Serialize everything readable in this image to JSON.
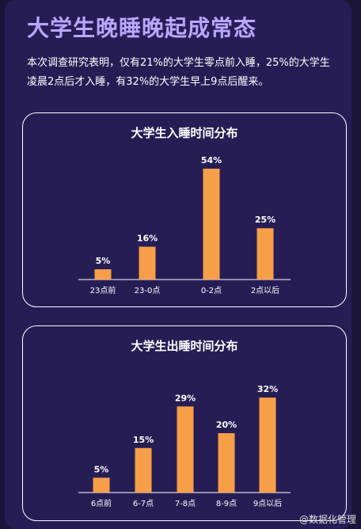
{
  "title": "大学生晚睡晚起成常态",
  "description": "本次调查研究表明，仅有21%的大学生零点前入睡，25%的大学生凌晨2点后才入睡，有32%的大学生早上9点后醒来。",
  "watermark": "@数据化管理",
  "colors": {
    "bar": "#f79f48",
    "background": "#271d55",
    "title": "#b9a7ff",
    "text": "#ffffff"
  },
  "chart_data": [
    {
      "type": "bar",
      "title": "大学生入睡时间分布",
      "categories": [
        "23点前",
        "23-0点",
        "0-2点",
        "2点以后"
      ],
      "values": [
        5,
        16,
        54,
        25
      ],
      "value_labels": [
        "5%",
        "16%",
        "54%",
        "25%"
      ],
      "ylim": [
        0,
        54
      ],
      "grid": false
    },
    {
      "type": "bar",
      "title": "大学生出睡时间分布",
      "categories": [
        "6点前",
        "6-7点",
        "7-8点",
        "8-9点",
        "9点以后"
      ],
      "values": [
        5,
        15,
        29,
        20,
        32
      ],
      "value_labels": [
        "5%",
        "15%",
        "29%",
        "20%",
        "32%"
      ],
      "ylim": [
        0,
        32
      ],
      "grid": false
    }
  ]
}
